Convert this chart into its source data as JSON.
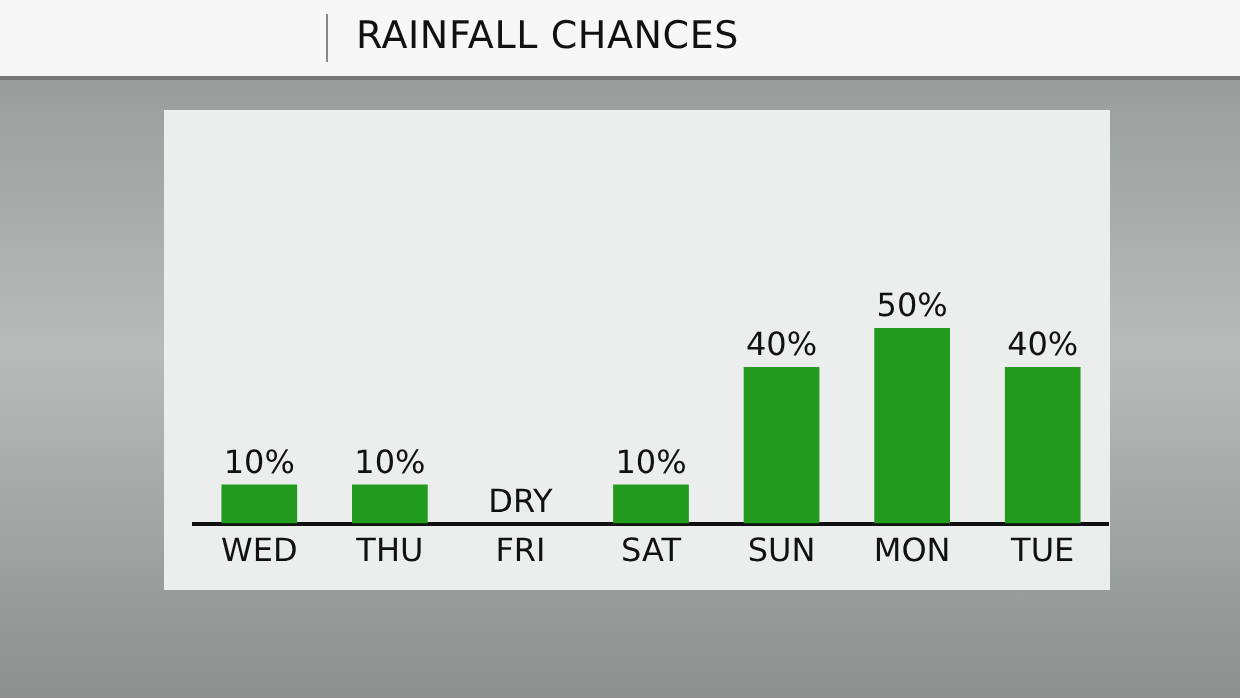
{
  "chart_data": {
    "type": "bar",
    "title": "RAINFALL CHANCES",
    "categories": [
      "WED",
      "THU",
      "FRI",
      "SAT",
      "SUN",
      "MON",
      "TUE"
    ],
    "values": [
      10,
      10,
      0,
      10,
      40,
      50,
      40
    ],
    "value_labels": [
      "10%",
      "10%",
      "DRY",
      "10%",
      "40%",
      "50%",
      "40%"
    ],
    "color": "#229a1e"
  }
}
